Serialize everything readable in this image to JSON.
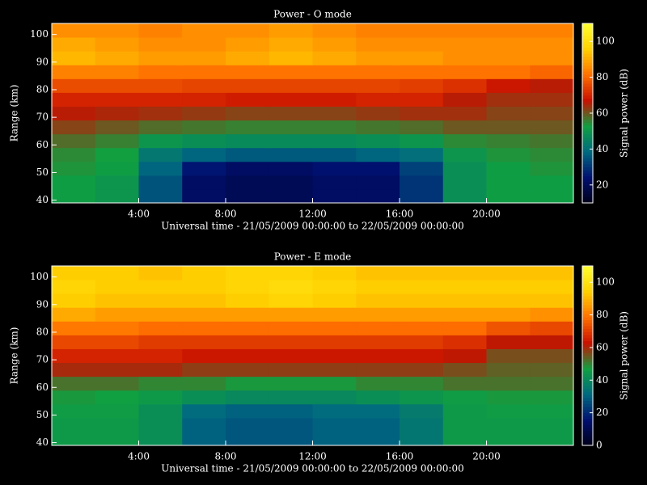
{
  "chart_data": [
    {
      "type": "heatmap",
      "title": "Power - O mode",
      "x_label": "Universal time - 21/05/2009 00:00:00 to 22/05/2009 00:00:00",
      "y_label": "Range (km)",
      "colorbar_label": "Signal power (dB)",
      "x": [
        0,
        2,
        4,
        6,
        8,
        10,
        12,
        14,
        16,
        18,
        20,
        22
      ],
      "y": [
        39,
        44,
        49,
        54,
        59,
        64,
        69,
        74,
        79,
        84,
        89,
        94,
        99
      ],
      "values": [
        [
          52,
          50,
          35,
          22,
          20,
          20,
          22,
          22,
          30,
          48,
          52,
          52
        ],
        [
          52,
          50,
          35,
          22,
          20,
          20,
          22,
          22,
          30,
          48,
          52,
          52
        ],
        [
          54,
          52,
          38,
          25,
          22,
          22,
          24,
          24,
          32,
          48,
          52,
          54
        ],
        [
          55,
          53,
          42,
          38,
          36,
          36,
          36,
          38,
          40,
          50,
          54,
          55
        ],
        [
          58,
          56,
          50,
          48,
          47,
          47,
          47,
          48,
          50,
          55,
          56,
          57
        ],
        [
          62,
          60,
          58,
          57,
          56,
          56,
          56,
          57,
          58,
          60,
          60,
          60
        ],
        [
          66,
          65,
          64,
          63,
          62,
          62,
          62,
          63,
          64,
          64,
          62,
          62
        ],
        [
          70,
          70,
          70,
          70,
          69,
          69,
          69,
          70,
          70,
          66,
          64,
          64
        ],
        [
          76,
          76,
          76,
          75,
          75,
          75,
          75,
          75,
          74,
          72,
          68,
          66
        ],
        [
          84,
          84,
          82,
          82,
          82,
          82,
          82,
          82,
          82,
          82,
          82,
          80
        ],
        [
          92,
          90,
          88,
          88,
          90,
          92,
          90,
          88,
          88,
          86,
          86,
          86
        ],
        [
          90,
          88,
          86,
          86,
          88,
          90,
          88,
          86,
          86,
          86,
          86,
          86
        ],
        [
          86,
          86,
          84,
          86,
          86,
          88,
          86,
          84,
          84,
          84,
          84,
          84
        ]
      ],
      "xlim": [
        0,
        24
      ],
      "ylim": [
        39,
        104
      ],
      "xticks": [
        {
          "value": 4,
          "label": "4:00"
        },
        {
          "value": 8,
          "label": "8:00"
        },
        {
          "value": 12,
          "label": "12:00"
        },
        {
          "value": 16,
          "label": "16:00"
        },
        {
          "value": 20,
          "label": "20:00"
        }
      ],
      "yticks": [
        40,
        50,
        60,
        70,
        80,
        90,
        100
      ],
      "clim": [
        10,
        110
      ],
      "cticks": [
        20,
        40,
        60,
        80,
        100
      ],
      "colormap": [
        "#000018",
        "#001070",
        "#006a80",
        "#10a040",
        "#c81000",
        "#ff7000",
        "#ffd000",
        "#ffff30"
      ]
    },
    {
      "type": "heatmap",
      "title": "Power - E mode",
      "x_label": "Universal time - 21/05/2009 00:00:00 to 22/05/2009 00:00:00",
      "y_label": "Range (km)",
      "colorbar_label": "Signal power (dB)",
      "x": [
        0,
        2,
        4,
        6,
        8,
        10,
        12,
        14,
        16,
        18,
        20,
        22
      ],
      "y": [
        39,
        44,
        49,
        54,
        59,
        64,
        69,
        74,
        79,
        84,
        89,
        94,
        99
      ],
      "values": [
        [
          45,
          45,
          42,
          30,
          28,
          28,
          30,
          30,
          35,
          45,
          45,
          45
        ],
        [
          45,
          45,
          42,
          30,
          28,
          28,
          30,
          30,
          35,
          45,
          45,
          45
        ],
        [
          46,
          46,
          42,
          32,
          30,
          30,
          32,
          32,
          36,
          45,
          46,
          46
        ],
        [
          48,
          47,
          45,
          42,
          40,
          40,
          40,
          42,
          44,
          46,
          48,
          48
        ],
        [
          52,
          52,
          50,
          50,
          48,
          48,
          48,
          50,
          50,
          52,
          52,
          52
        ],
        [
          60,
          60,
          60,
          58,
          58,
          58,
          58,
          58,
          58,
          56,
          54,
          54
        ],
        [
          66,
          66,
          66,
          64,
          64,
          64,
          64,
          64,
          64,
          62,
          56,
          56
        ],
        [
          72,
          72,
          70,
          70,
          70,
          70,
          70,
          70,
          70,
          68,
          62,
          62
        ],
        [
          80,
          80,
          78,
          78,
          78,
          78,
          78,
          78,
          78,
          78,
          74,
          72
        ],
        [
          88,
          86,
          86,
          86,
          86,
          86,
          86,
          86,
          86,
          86,
          86,
          84
        ],
        [
          94,
          92,
          92,
          92,
          94,
          96,
          94,
          92,
          92,
          92,
          92,
          92
        ],
        [
          96,
          94,
          94,
          94,
          96,
          98,
          96,
          94,
          94,
          94,
          94,
          94
        ],
        [
          94,
          94,
          92,
          94,
          96,
          96,
          94,
          92,
          92,
          92,
          92,
          92
        ]
      ],
      "xlim": [
        0,
        24
      ],
      "ylim": [
        39,
        104
      ],
      "xticks": [
        {
          "value": 4,
          "label": "4:00"
        },
        {
          "value": 8,
          "label": "8:00"
        },
        {
          "value": 12,
          "label": "12:00"
        },
        {
          "value": 16,
          "label": "16:00"
        },
        {
          "value": 20,
          "label": "20:00"
        }
      ],
      "yticks": [
        40,
        50,
        60,
        70,
        80,
        90,
        100
      ],
      "clim": [
        0,
        110
      ],
      "cticks": [
        0,
        20,
        40,
        60,
        80,
        100
      ],
      "colormap": [
        "#000018",
        "#001070",
        "#006a80",
        "#10a040",
        "#c81000",
        "#ff7000",
        "#ffd000",
        "#ffff30"
      ]
    }
  ]
}
